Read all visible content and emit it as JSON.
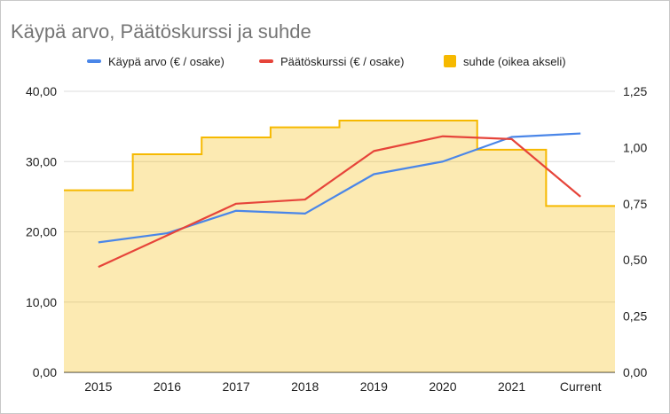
{
  "chart_data": {
    "type": "line",
    "title": "Käypä arvo, Päätöskurssi ja suhde",
    "categories": [
      "2015",
      "2016",
      "2017",
      "2018",
      "2019",
      "2020",
      "2021",
      "Current"
    ],
    "series": [
      {
        "name": "Käypä arvo (€ / osake)",
        "axis": "left",
        "style": "line",
        "color": "#4a86e8",
        "values": [
          18.5,
          19.8,
          23.0,
          22.6,
          28.2,
          30.0,
          33.5,
          34.0
        ]
      },
      {
        "name": "Päätöskurssi (€ / osake)",
        "axis": "left",
        "style": "line",
        "color": "#e6443a",
        "values": [
          15.0,
          19.5,
          24.0,
          24.6,
          31.5,
          33.6,
          33.2,
          25.0
        ]
      },
      {
        "name": "suhde (oikea akseli)",
        "axis": "right",
        "style": "stepped-area",
        "color": "#f6b900",
        "values": [
          0.81,
          0.97,
          1.045,
          1.09,
          1.12,
          1.12,
          0.99,
          0.74
        ]
      }
    ],
    "y_left": {
      "min": 0,
      "max": 40,
      "ticks": [
        "0,00",
        "10,00",
        "20,00",
        "30,00",
        "40,00"
      ]
    },
    "y_right": {
      "min": 0,
      "max": 1.25,
      "ticks": [
        "0,00",
        "0,25",
        "0,50",
        "0,75",
        "1,00",
        "1,25"
      ]
    },
    "grid": true,
    "legend_position": "top"
  }
}
